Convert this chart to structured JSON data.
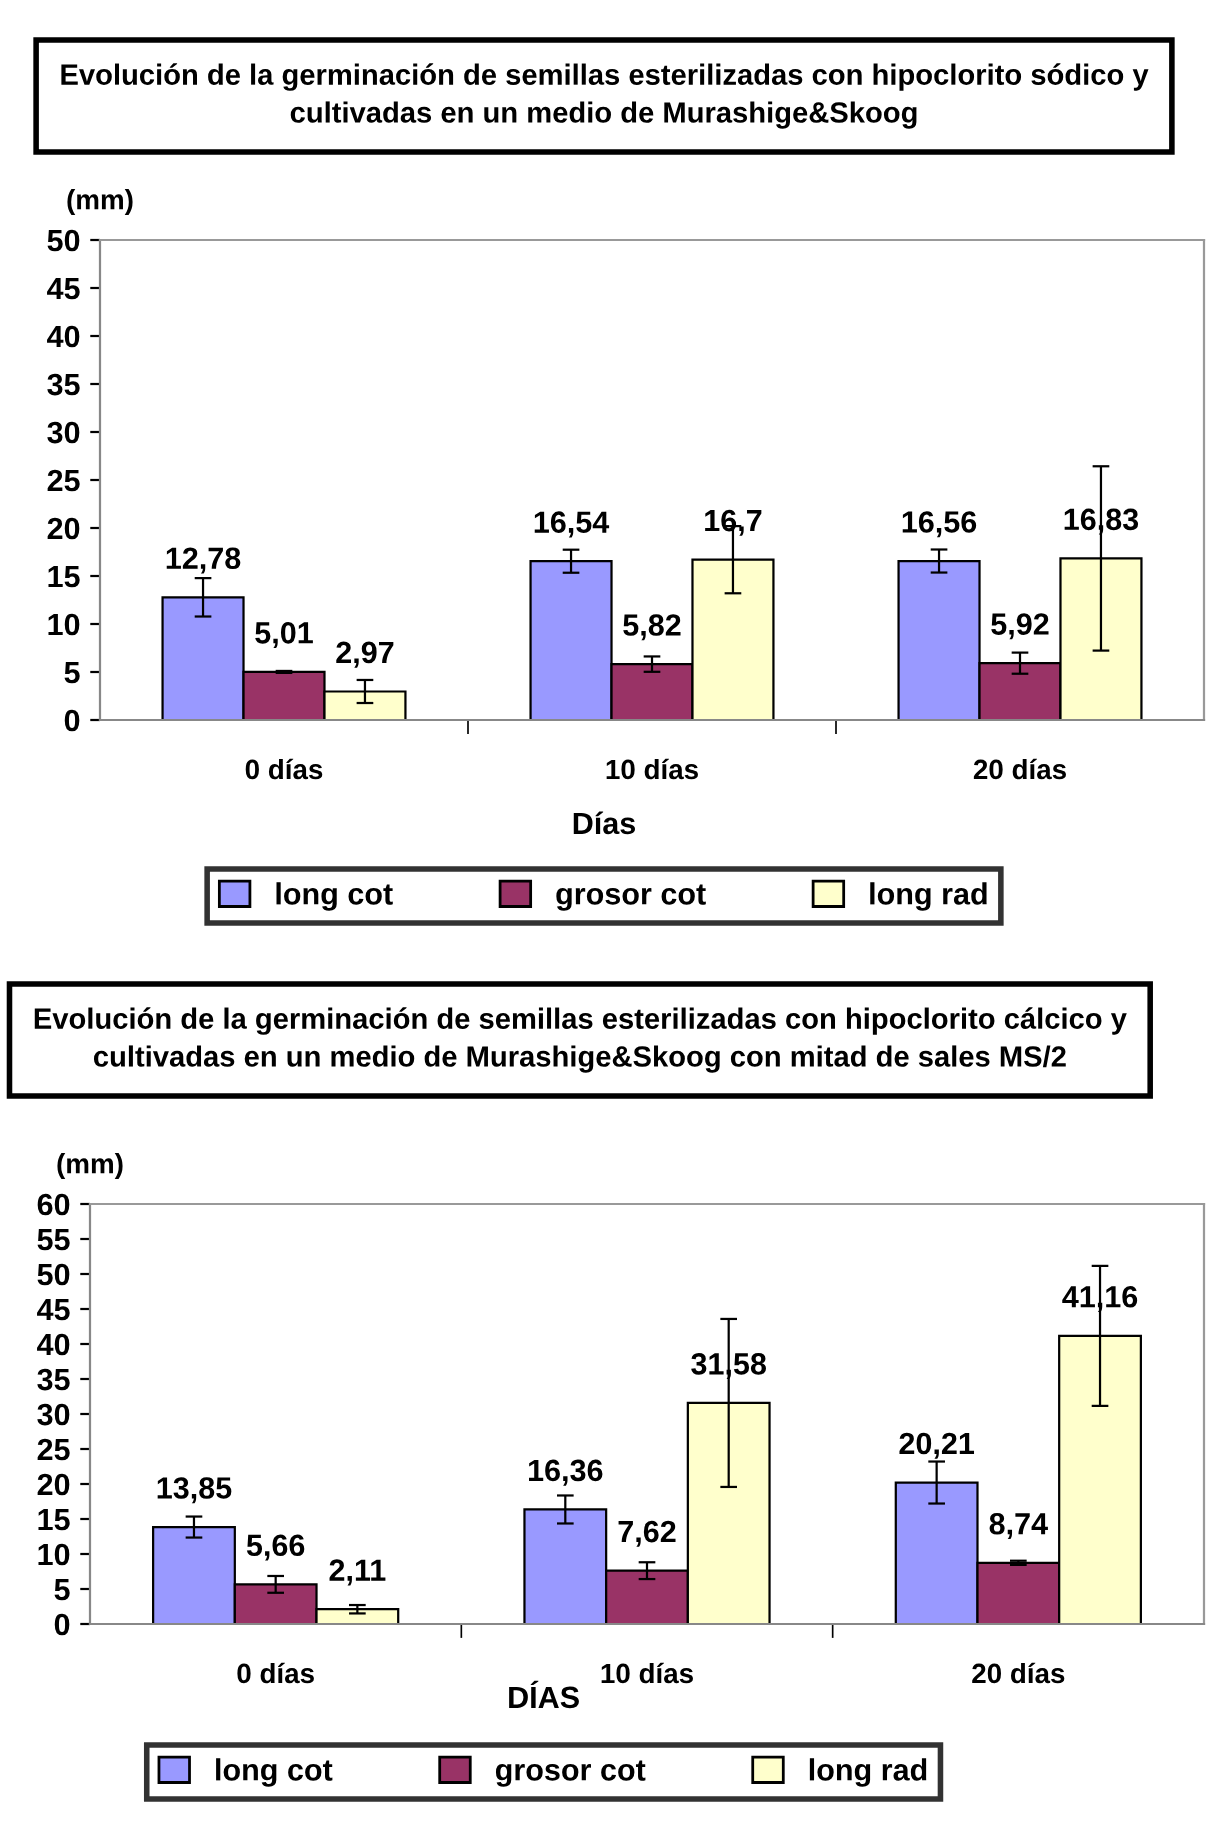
{
  "chart_data": [
    {
      "type": "bar",
      "title": "Evolución de la germinación de semillas esterilizadas con hipoclorito sódico y cultivadas en un medio de Murashige&Skoog",
      "xlabel": "Días",
      "ylabel": "(mm)",
      "categories": [
        "0 días",
        "10 días",
        "20 días"
      ],
      "ylim": [
        0,
        50
      ],
      "yticks": [
        0,
        5,
        10,
        15,
        20,
        25,
        30,
        35,
        40,
        45,
        50
      ],
      "grid": false,
      "legend": "bottom",
      "data_labels": false,
      "series": [
        {
          "name": "long cot",
          "color": "#9999ff",
          "values": [
            12.78,
            16.54,
            16.56
          ],
          "errors": [
            2,
            1.2,
            1.2
          ],
          "value_labels": [
            "12,78",
            "16,54",
            "16,56"
          ]
        },
        {
          "name": "grosor cot",
          "color": "#993366",
          "values": [
            5.01,
            5.82,
            5.92
          ],
          "errors": [
            0.1,
            0.8,
            1.1
          ],
          "value_labels": [
            "5,01",
            "5,82",
            "5,92"
          ]
        },
        {
          "name": "long rad",
          "color": "#ffffcc",
          "values": [
            2.97,
            16.7,
            16.83
          ],
          "errors": [
            1.2,
            3.5,
            9.6
          ],
          "value_labels": [
            "2,97",
            "16,7",
            "16,83"
          ]
        }
      ]
    },
    {
      "type": "bar",
      "title": "Evolución de la germinación de semillas esterilizadas con hipoclorito cálcico y cultivadas en un medio de Murashige&Skoog con mitad de sales MS/2",
      "xlabel": "DÍAS",
      "ylabel": "(mm)",
      "categories": [
        "0 días",
        "10 días",
        "20 días"
      ],
      "ylim": [
        0,
        60
      ],
      "yticks": [
        0,
        5,
        10,
        15,
        20,
        25,
        30,
        35,
        40,
        45,
        50,
        55,
        60
      ],
      "grid": false,
      "legend": "bottom",
      "data_labels": false,
      "series": [
        {
          "name": "long cot",
          "color": "#9999ff",
          "values": [
            13.85,
            16.36,
            20.21
          ],
          "errors": [
            1.5,
            2,
            3
          ],
          "value_labels": [
            "13,85",
            "16,36",
            "20,21"
          ]
        },
        {
          "name": "grosor cot",
          "color": "#993366",
          "values": [
            5.66,
            7.62,
            8.74
          ],
          "errors": [
            1.2,
            1.2,
            0.3
          ],
          "value_labels": [
            "5,66",
            "7,62",
            "8,74"
          ]
        },
        {
          "name": "long rad",
          "color": "#ffffcc",
          "values": [
            2.11,
            31.58,
            41.16
          ],
          "errors": [
            0.6,
            12,
            10
          ],
          "value_labels": [
            "2,11",
            "31,58",
            "41,16"
          ]
        }
      ]
    }
  ]
}
